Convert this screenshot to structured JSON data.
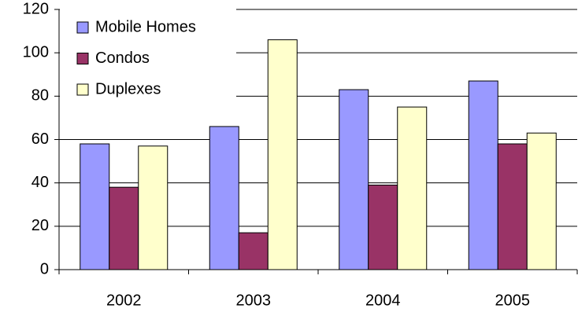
{
  "chart_data": {
    "type": "bar",
    "categories": [
      "2002",
      "2003",
      "2004",
      "2005"
    ],
    "series": [
      {
        "name": "Mobile Homes",
        "color": "#9999ff",
        "values": [
          58,
          66,
          83,
          87
        ]
      },
      {
        "name": "Condos",
        "color": "#993366",
        "values": [
          38,
          17,
          39,
          58
        ]
      },
      {
        "name": "Duplexes",
        "color": "#ffffcc",
        "values": [
          57,
          106,
          75,
          63
        ]
      }
    ],
    "ylim": [
      0,
      120
    ],
    "yticks": [
      0,
      20,
      40,
      60,
      80,
      100,
      120
    ],
    "grid": true,
    "legend": "top-left"
  }
}
